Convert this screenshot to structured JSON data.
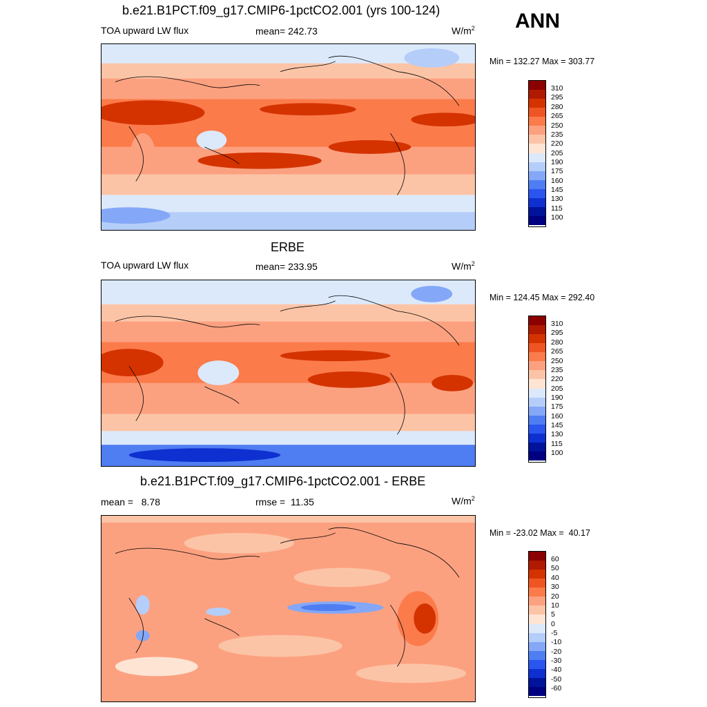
{
  "season": "ANN",
  "panels": [
    {
      "title": "b.e21.B1PCT.f09_g17.CMIP6-1pctCO2.001 (yrs 100-124)",
      "left_label": "TOA upward LW flux",
      "center_label": "mean= 242.73",
      "units": "W/m",
      "units_sup": "2",
      "minmax": "Min = 132.27 Max = 303.77",
      "colorbar_labels": [
        "310",
        "295",
        "280",
        "265",
        "250",
        "235",
        "220",
        "205",
        "190",
        "175",
        "160",
        "145",
        "130",
        "115",
        "100"
      ]
    },
    {
      "title": "ERBE",
      "left_label": "TOA upward LW flux",
      "center_label": "mean= 233.95",
      "units": "W/m",
      "units_sup": "2",
      "minmax": "Min = 124.45 Max = 292.40",
      "colorbar_labels": [
        "310",
        "295",
        "280",
        "265",
        "250",
        "235",
        "220",
        "205",
        "190",
        "175",
        "160",
        "145",
        "130",
        "115",
        "100"
      ]
    },
    {
      "title": "b.e21.B1PCT.f09_g17.CMIP6-1pctCO2.001 - ERBE",
      "left_label": "mean =   8.78",
      "center_label": "rmse =  11.35",
      "units": "W/m",
      "units_sup": "2",
      "minmax": "Min = -23.02 Max =  40.17",
      "colorbar_labels": [
        "60",
        "50",
        "40",
        "30",
        "20",
        "10",
        "5",
        "0",
        "-5",
        "-10",
        "-20",
        "-30",
        "-40",
        "-50",
        "-60"
      ]
    }
  ],
  "colors": {
    "scale": [
      "#8b0000",
      "#b01a00",
      "#d43300",
      "#ef5522",
      "#fb7b4b",
      "#fca180",
      "#fcc4a6",
      "#fde4d3",
      "#dce9fb",
      "#b5cdf9",
      "#84a8f7",
      "#4f7df2",
      "#2a55ee",
      "#0f30d0",
      "#00139a",
      "#000080"
    ]
  }
}
